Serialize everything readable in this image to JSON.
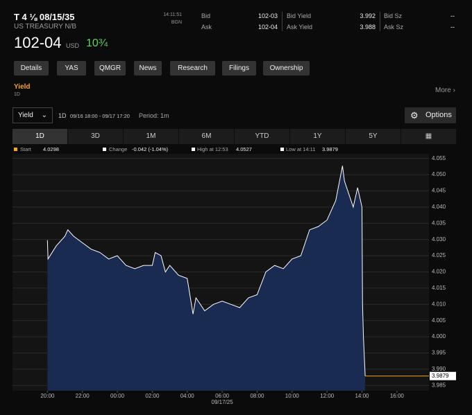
{
  "header": {
    "title": "T 4 ⅛ 08/15/35",
    "subtitle": "US TREASURY N/B",
    "time": "14:11:51",
    "source": "BGN",
    "quotes": [
      {
        "label": "Bid",
        "price": "102-03",
        "yield_label": "Bid Yield",
        "yield": "3.992",
        "size_label": "Bid Sz",
        "size": "--"
      },
      {
        "label": "Ask",
        "price": "102-04",
        "yield_label": "Ask Yield",
        "yield": "3.988",
        "size_label": "Ask Sz",
        "size": "--"
      }
    ],
    "price": "102-04",
    "currency": "USD",
    "change": "10¾"
  },
  "buttons": [
    "Details",
    "YAS",
    "QMGR",
    "News",
    "Research",
    "Filings",
    "Ownership"
  ],
  "section": {
    "title": "Yield",
    "period": "1D",
    "more": "More"
  },
  "controls": {
    "field": "Yield",
    "period": "1D",
    "range": "09/16 18:00 - 09/17 17:20",
    "interval": "Period: 1m",
    "options": "Options"
  },
  "tabs": [
    "1D",
    "3D",
    "1M",
    "6M",
    "YTD",
    "1Y",
    "5Y"
  ],
  "legend": [
    {
      "label": "Start",
      "value": "4.0298"
    },
    {
      "label": "Change",
      "value": "-0.042 (-1.04%)"
    },
    {
      "label": "High at 12:53",
      "value": "4.0527"
    },
    {
      "label": "Low at 14:11",
      "value": "3.9879"
    }
  ],
  "chart_data": {
    "type": "area",
    "line_color": "#ffffff",
    "fill_color": "#1a2b52",
    "last_color": "#f5a623",
    "grid": true,
    "x": [
      "20:00",
      "20:02",
      "20:30",
      "21:00",
      "21:10",
      "21:30",
      "22:00",
      "22:30",
      "23:00",
      "23:30",
      "00:00",
      "00:30",
      "01:00",
      "01:30",
      "02:00",
      "02:10",
      "02:30",
      "02:45",
      "03:00",
      "03:30",
      "04:00",
      "04:20",
      "04:30",
      "05:00",
      "05:30",
      "06:00",
      "06:30",
      "07:00",
      "07:30",
      "08:00",
      "08:30",
      "09:00",
      "09:30",
      "10:00",
      "10:30",
      "11:00",
      "11:30",
      "12:00",
      "12:30",
      "12:53",
      "13:00",
      "13:15",
      "13:30",
      "13:45",
      "14:00",
      "14:02",
      "14:05",
      "14:11"
    ],
    "values": [
      4.0298,
      4.024,
      4.028,
      4.031,
      4.033,
      4.031,
      4.029,
      4.027,
      4.026,
      4.024,
      4.025,
      4.022,
      4.021,
      4.022,
      4.022,
      4.026,
      4.025,
      4.02,
      4.022,
      4.019,
      4.018,
      4.007,
      4.012,
      4.008,
      4.01,
      4.011,
      4.01,
      4.009,
      4.012,
      4.013,
      4.02,
      4.022,
      4.021,
      4.024,
      4.025,
      4.033,
      4.034,
      4.036,
      4.042,
      4.0527,
      4.048,
      4.044,
      4.04,
      4.046,
      4.04,
      4.01,
      4.0,
      3.9879
    ],
    "last": 3.9879,
    "xlim": [
      "18:00",
      "17:50"
    ],
    "xticks": [
      "20:00",
      "22:00",
      "00:00",
      "02:00",
      "04:00",
      "06:00",
      "08:00",
      "10:00",
      "12:00",
      "14:00",
      "16:00"
    ],
    "date_label": "09/17/25",
    "date_at": "06:00",
    "ylim": [
      3.984,
      4.056
    ],
    "yticks": [
      3.985,
      {
        "value": 3.99,
        "label": "3.990"
      },
      3.995,
      {
        "value": 4.0,
        "label": "4.000"
      },
      4.005,
      {
        "value": 4.01,
        "label": "4.010"
      },
      4.015,
      {
        "value": 4.02,
        "label": "4.020"
      },
      4.025,
      {
        "value": 4.03,
        "label": "4.030"
      },
      4.035,
      {
        "value": 4.04,
        "label": "4.040"
      },
      4.045,
      {
        "value": 4.05,
        "label": "4.050"
      },
      4.055
    ]
  }
}
